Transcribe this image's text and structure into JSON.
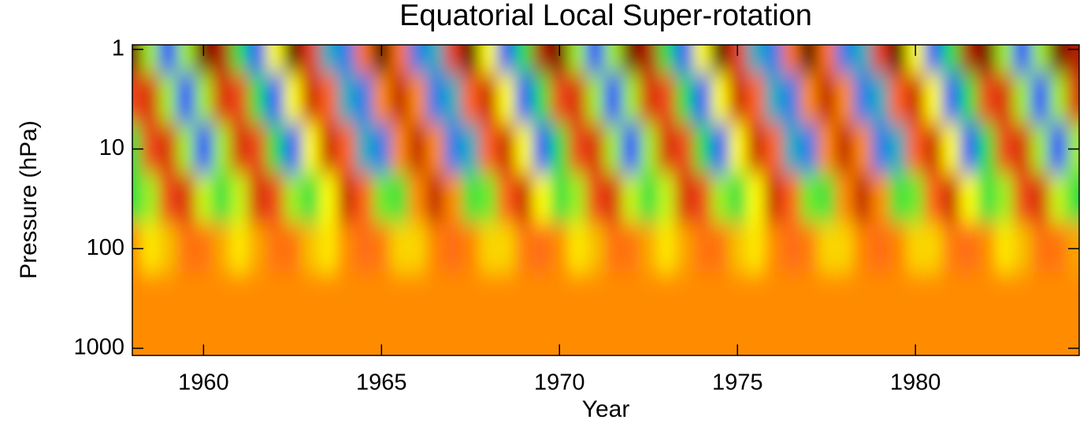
{
  "chart_data": {
    "type": "contour",
    "title": "Equatorial Local Super-rotation",
    "x_label": "Year",
    "y_label": "Pressure (hPa)",
    "x": [
      1958.0,
      1958.5,
      1959.0,
      1959.5,
      1960.0,
      1960.5,
      1961.0,
      1961.5,
      1962.0,
      1962.5,
      1963.0,
      1963.5,
      1964.0,
      1964.5,
      1965.0,
      1965.5,
      1966.0,
      1966.5,
      1967.0,
      1967.5,
      1968.0,
      1968.5,
      1969.0,
      1969.5,
      1970.0,
      1970.5,
      1971.0,
      1971.5,
      1972.0,
      1972.5,
      1973.0,
      1973.5,
      1974.0,
      1974.5,
      1975.0,
      1975.5,
      1976.0,
      1976.5,
      1977.0,
      1977.5,
      1978.0,
      1978.5,
      1979.0,
      1979.5,
      1980.0,
      1980.5,
      1981.0,
      1981.5,
      1982.0,
      1982.5,
      1983.0,
      1983.5,
      1984.0,
      1984.5
    ],
    "y": [
      1,
      3,
      10,
      30,
      100,
      300,
      1000
    ],
    "z": [
      [
        26,
        -5,
        -20,
        -5,
        26,
        21,
        -10,
        -19,
        0,
        29,
        15,
        -14,
        -17,
        8,
        30,
        8,
        -17,
        -14,
        15,
        29,
        0,
        -19,
        -10,
        21,
        26,
        -5,
        -20,
        -5,
        26,
        21,
        -10,
        -19,
        0,
        29,
        15,
        -14,
        -17,
        8,
        30,
        8,
        -17,
        -14,
        15,
        29,
        0,
        -19,
        -10,
        21,
        26,
        -5,
        -20,
        -5,
        26,
        21
      ],
      [
        14,
        17,
        -5,
        -20,
        -5,
        17,
        14,
        -10,
        -19,
        0,
        19,
        10,
        -14,
        -17,
        5,
        20,
        5,
        -17,
        -14,
        10,
        19,
        0,
        -19,
        -10,
        14,
        17,
        -5,
        -20,
        -5,
        17,
        14,
        -10,
        -19,
        0,
        19,
        10,
        -14,
        -17,
        5,
        20,
        5,
        -17,
        -14,
        10,
        19,
        0,
        -19,
        -10,
        14,
        17,
        -5,
        -20,
        -5,
        17
      ],
      [
        -10,
        14,
        17,
        -5,
        -20,
        -5,
        17,
        14,
        -10,
        -19,
        0,
        19,
        10,
        -14,
        -17,
        5,
        20,
        5,
        -17,
        -14,
        10,
        19,
        0,
        -19,
        -10,
        14,
        17,
        -5,
        -20,
        -5,
        17,
        14,
        -10,
        -19,
        0,
        19,
        10,
        -14,
        -17,
        5,
        20,
        5,
        -17,
        -14,
        10,
        19,
        0,
        -19,
        -10,
        14,
        17,
        -5,
        -20,
        -5
      ],
      [
        -10,
        -5,
        14,
        17,
        -3,
        -10,
        -3,
        17,
        14,
        -5,
        -10,
        0,
        19,
        10,
        -7,
        -9,
        5,
        20,
        5,
        -9,
        -7,
        10,
        19,
        0,
        -10,
        -5,
        14,
        17,
        -3,
        -10,
        -3,
        17,
        14,
        -5,
        -10,
        0,
        19,
        10,
        -7,
        -9,
        5,
        20,
        5,
        -9,
        -7,
        10,
        19,
        0,
        -10,
        -5,
        14,
        17,
        -3,
        -10
      ],
      [
        5,
        1,
        3,
        8,
        8,
        4,
        1,
        4,
        8,
        8,
        3,
        1,
        5,
        9,
        7,
        2,
        2,
        6,
        9,
        6,
        2,
        2,
        7,
        9,
        5,
        1,
        3,
        8,
        8,
        4,
        1,
        4,
        8,
        8,
        3,
        1,
        5,
        9,
        7,
        2,
        2,
        6,
        9,
        6,
        2,
        2,
        7,
        9,
        5,
        1,
        3,
        8,
        8,
        4
      ],
      [
        5,
        5,
        5,
        5,
        5,
        5,
        5,
        5,
        5,
        5,
        5,
        5,
        5,
        5,
        5,
        5,
        5,
        5,
        5,
        5,
        5,
        5,
        5,
        5,
        5,
        5,
        5,
        5,
        5,
        5,
        5,
        5,
        5,
        5,
        5,
        5,
        5,
        5,
        5,
        5,
        5,
        5,
        5,
        5,
        5,
        5,
        5,
        5,
        5,
        5,
        5,
        5,
        5,
        5
      ],
      [
        5,
        5,
        5,
        5,
        5,
        5,
        5,
        5,
        5,
        5,
        5,
        5,
        5,
        5,
        5,
        5,
        5,
        5,
        5,
        5,
        5,
        5,
        5,
        5,
        5,
        5,
        5,
        5,
        5,
        5,
        5,
        5,
        5,
        5,
        5,
        5,
        5,
        5,
        5,
        5,
        5,
        5,
        5,
        5,
        5,
        5,
        5,
        5,
        5,
        5,
        5,
        5,
        5,
        5
      ]
    ],
    "xlim": [
      1958.0,
      1984.6
    ],
    "ylim": [
      1180,
      0.9
    ],
    "xticks": [
      1960,
      1965,
      1970,
      1975,
      1980
    ],
    "yticks": [
      1,
      10,
      100,
      1000
    ],
    "y_log": true
  }
}
